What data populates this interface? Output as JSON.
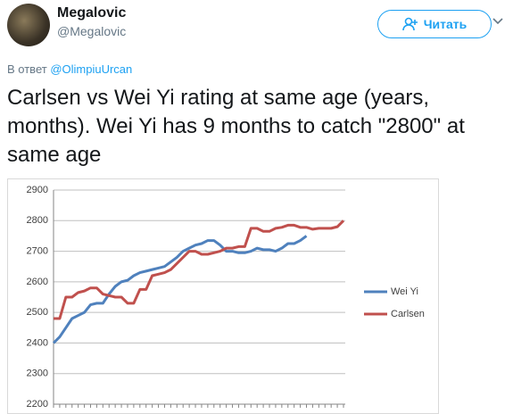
{
  "header": {
    "name": "Megalovic",
    "handle": "@Megalovic",
    "follow_button": "Читать"
  },
  "reply": {
    "prefix": "В ответ",
    "mention": "@OlimpiuUrcan"
  },
  "tweet_text": "Carlsen vs Wei Yi rating at same age (years, months). Wei Yi has 9 months to catch \"2800\" at same age",
  "chart_data": {
    "type": "line",
    "categories": [
      null,
      null,
      null,
      null,
      null,
      null,
      null,
      null,
      null,
      null,
      null,
      null,
      null,
      null,
      null,
      null,
      null,
      null,
      null,
      null,
      null,
      null,
      null,
      null,
      null,
      null,
      null,
      null,
      null,
      null,
      null,
      null,
      null,
      null,
      null,
      null,
      null,
      null,
      null,
      null,
      null,
      null,
      null,
      null,
      null,
      null,
      null,
      null
    ],
    "series": [
      {
        "name": "Wei Yi",
        "color": "#4f81bd",
        "values": [
          2400,
          2420,
          2450,
          2480,
          2490,
          2500,
          2525,
          2530,
          2530,
          2560,
          2585,
          2600,
          2605,
          2620,
          2630,
          2635,
          2640,
          2645,
          2650,
          2665,
          2680,
          2700,
          2710,
          2720,
          2725,
          2735,
          2735,
          2720,
          2700,
          2700,
          2695,
          2695,
          2700,
          2710,
          2705,
          2705,
          2700,
          2710,
          2725,
          2725,
          2735,
          2750,
          null,
          null,
          null,
          null,
          null,
          null
        ]
      },
      {
        "name": "Carlsen",
        "color": "#c0504d",
        "values": [
          2480,
          2480,
          2550,
          2550,
          2565,
          2570,
          2580,
          2580,
          2560,
          2555,
          2550,
          2550,
          2530,
          2530,
          2575,
          2575,
          2620,
          2625,
          2630,
          2640,
          2660,
          2680,
          2700,
          2700,
          2690,
          2690,
          2695,
          2700,
          2710,
          2710,
          2715,
          2715,
          2775,
          2775,
          2765,
          2765,
          2775,
          2778,
          2785,
          2785,
          2778,
          2778,
          2772,
          2775,
          2775,
          2775,
          2780,
          2800
        ]
      }
    ],
    "ylim": [
      2200,
      2900
    ],
    "yticks": [
      2200,
      2300,
      2400,
      2500,
      2600,
      2700,
      2800,
      2900
    ],
    "grid": true,
    "legend": "right"
  }
}
